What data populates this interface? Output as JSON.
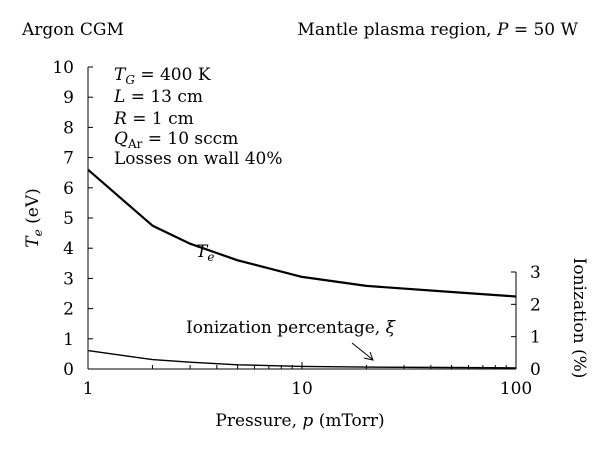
{
  "header": {
    "left": "Argon CGM",
    "right": "Mantle plasma region, P = 50 W"
  },
  "params": [
    "T_G = 400 K",
    "L = 13 cm",
    "R = 1 cm",
    "Q_Ar = 10 sccm",
    "Losses on wall 40%"
  ],
  "chart_data": {
    "type": "line",
    "xscale": "log",
    "xlim": [
      1,
      100
    ],
    "ylim_left": [
      0,
      10
    ],
    "ylim_right": [
      0,
      3
    ],
    "xlabel": "Pressure, p (mTorr)",
    "ylabel_left": "T_e (eV)",
    "ylabel_right": "Ionization (%)",
    "x_ticks": [
      "1",
      "10",
      "100"
    ],
    "y_ticks_left": [
      "0",
      "1",
      "2",
      "3",
      "4",
      "5",
      "6",
      "7",
      "8",
      "9",
      "10"
    ],
    "y_ticks_right": [
      "0",
      "1",
      "2",
      "3"
    ],
    "grid": false,
    "series": [
      {
        "name": "T_e",
        "axis": "left",
        "color": "#000000",
        "x": [
          1,
          2,
          3,
          5,
          10,
          20,
          50,
          100
        ],
        "y": [
          6.6,
          4.75,
          4.15,
          3.6,
          3.05,
          2.75,
          2.55,
          2.4
        ]
      },
      {
        "name": "Ionization percentage, ξ",
        "axis": "right",
        "color": "#000000",
        "x": [
          1,
          2,
          3,
          5,
          10,
          20,
          50,
          100
        ],
        "y": [
          0.57,
          0.29,
          0.21,
          0.13,
          0.08,
          0.06,
          0.045,
          0.035
        ]
      }
    ]
  }
}
